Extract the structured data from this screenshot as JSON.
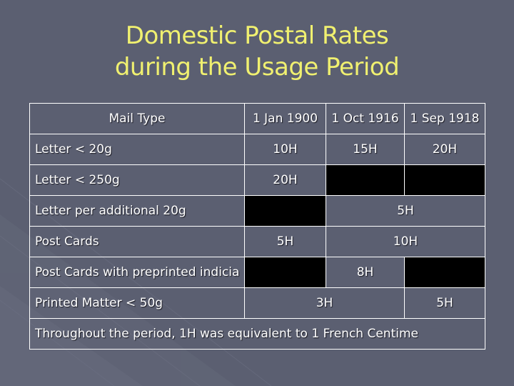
{
  "slide": {
    "title_line1": "Domestic Postal Rates",
    "title_line2": "during the Usage Period"
  },
  "table": {
    "header": {
      "mail_type": "Mail Type",
      "date1": "1 Jan 1900",
      "date2": "1 Oct 1916",
      "date3": "1 Sep 1918"
    },
    "rows": [
      {
        "label": "Letter < 20g",
        "c1": "10H",
        "c2": "15H",
        "c3": "20H"
      },
      {
        "label": "Letter < 250g",
        "c1": "20H"
      },
      {
        "label": "Letter per additional 20g",
        "c23": "5H"
      },
      {
        "label": "Post Cards",
        "c1": "5H",
        "c23": "10H"
      },
      {
        "label": "Post Cards with preprinted indicia",
        "c2": "8H"
      },
      {
        "label": "Printed Matter < 50g",
        "c12": "3H",
        "c3": "5H"
      }
    ],
    "footnote": "Throughout the period, 1H was equivalent to 1 French Centime"
  },
  "colors": {
    "background": "#5b5f71",
    "title": "#f0f070",
    "text": "#ffffff",
    "blocked_cell": "#000000"
  }
}
